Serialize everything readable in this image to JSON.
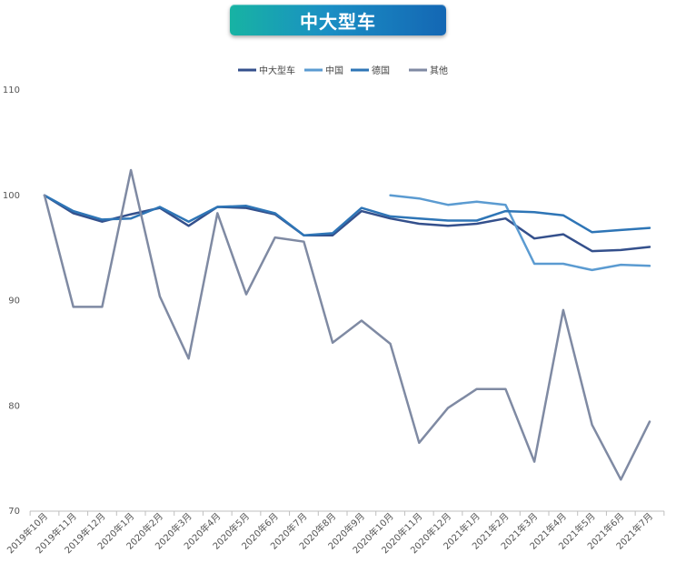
{
  "chart_data": {
    "type": "line",
    "title": "中大型车",
    "x": [
      "2019年10月",
      "2019年11月",
      "2019年12月",
      "2020年1月",
      "2020年2月",
      "2020年3月",
      "2020年4月",
      "2020年5月",
      "2020年6月",
      "2020年7月",
      "2020年8月",
      "2020年9月",
      "2020年10月",
      "2020年11月",
      "2020年12月",
      "2021年1月",
      "2021年2月",
      "2021年3月",
      "2021年4月",
      "2021年5月",
      "2021年6月",
      "2021年7月"
    ],
    "ylim": [
      70,
      110
    ],
    "yticks": [
      70,
      80,
      90,
      100,
      110
    ],
    "grid": false,
    "legend_position": "top-center",
    "series": [
      {
        "name": "中大型车",
        "color": "#34508c",
        "values": [
          100,
          98.3,
          97.5,
          98.2,
          98.8,
          97.1,
          98.9,
          98.8,
          98.2,
          96.2,
          96.2,
          98.5,
          97.8,
          97.3,
          97.1,
          97.3,
          97.8,
          95.9,
          96.3,
          94.7,
          94.8,
          95.1
        ]
      },
      {
        "name": "中国",
        "color": "#5b9bd1",
        "values": [
          null,
          null,
          null,
          null,
          null,
          null,
          null,
          null,
          null,
          null,
          null,
          null,
          100,
          99.7,
          99.1,
          99.4,
          99.1,
          93.5,
          93.5,
          92.9,
          93.4,
          93.3
        ]
      },
      {
        "name": "德国",
        "color": "#2e75b6",
        "values": [
          100,
          98.5,
          97.7,
          97.8,
          98.9,
          97.5,
          98.9,
          99.0,
          98.3,
          96.2,
          96.4,
          98.8,
          98.0,
          97.8,
          97.6,
          97.6,
          98.5,
          98.4,
          98.1,
          96.5,
          96.7,
          96.9
        ]
      },
      {
        "name": "其他",
        "color": "#7f8aa3",
        "values": [
          100,
          89.4,
          89.4,
          102.4,
          90.4,
          84.5,
          98.3,
          90.6,
          96.0,
          95.6,
          86.0,
          88.1,
          85.9,
          76.5,
          79.8,
          81.6,
          81.6,
          74.7,
          89.1,
          78.2,
          73.0,
          78.5
        ]
      }
    ]
  }
}
